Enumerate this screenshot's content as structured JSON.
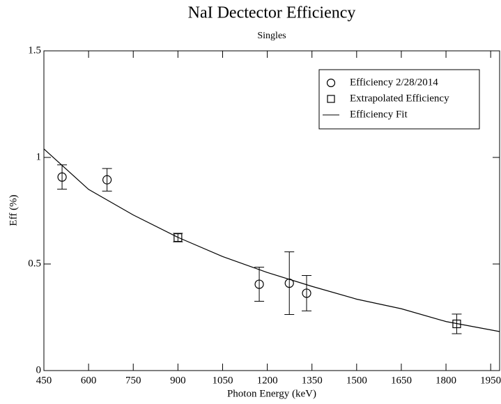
{
  "chart_data": {
    "type": "scatter",
    "title": "NaI Dectector Efficiency",
    "subtitle": "Singles",
    "x_label": "Photon Energy (keV)",
    "y_label": "Eff (%)",
    "xlim": [
      450,
      1980
    ],
    "ylim": [
      0,
      1.5
    ],
    "xticks": [
      450,
      600,
      750,
      900,
      1050,
      1200,
      1350,
      1500,
      1650,
      1800,
      1950
    ],
    "yticks": [
      0,
      0.5,
      1,
      1.5
    ],
    "grid": false,
    "legend": "upper right",
    "series": [
      {
        "name": "Efficiency 2/28/2014",
        "color": "#000000",
        "marker": "circle",
        "x": [
          511,
          662,
          1173,
          1274,
          1332
        ],
        "values": [
          0.908,
          0.895,
          0.405,
          0.41,
          0.363
        ],
        "errors": [
          0.057,
          0.053,
          0.08,
          0.147,
          0.083
        ]
      },
      {
        "name": "Extrapolated Efficiency",
        "color": "#000000",
        "marker": "square",
        "x": [
          900,
          1836
        ],
        "values": [
          0.624,
          0.219
        ],
        "errors": [
          0.02,
          0.046
        ]
      },
      {
        "name": "Efficiency Fit",
        "color": "#000000",
        "marker": "line",
        "x": [
          450,
          600,
          750,
          900,
          1050,
          1200,
          1350,
          1500,
          1650,
          1800,
          1980
        ],
        "values": [
          1.04,
          0.85,
          0.73,
          0.625,
          0.535,
          0.46,
          0.395,
          0.335,
          0.29,
          0.23,
          0.183
        ]
      }
    ]
  }
}
